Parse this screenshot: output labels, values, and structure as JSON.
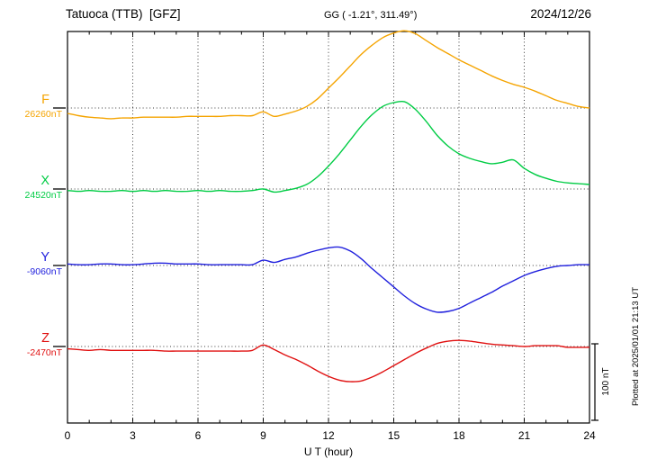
{
  "header": {
    "station": "Tatuoca (TTB)  [GFZ]",
    "coords": "GG ( -1.21°, 311.49°)",
    "date": "2024/12/26"
  },
  "axis": {
    "xlabel": "U T (hour)",
    "xticks": [
      "0",
      "3",
      "6",
      "9",
      "12",
      "15",
      "18",
      "21",
      "24"
    ]
  },
  "footer": {
    "plotted": "Plotted at 2025/01/01 21:13 UT"
  },
  "chart_data": {
    "type": "line",
    "title": "Tatuoca (TTB) [GFZ] magnetogram",
    "date": "2024/12/26",
    "xlabel": "U T (hour)",
    "xlim": [
      0,
      24
    ],
    "xticks": [
      0,
      3,
      6,
      9,
      12,
      15,
      18,
      21,
      24
    ],
    "y_unit": "nT",
    "scale_bar": {
      "label": "100 nT",
      "nT": 100
    },
    "points_format": "[hour_UT, offset_nT_from_channel_baseline]",
    "series": [
      {
        "name": "F",
        "baseline_label": "26260nT",
        "baseline_nT": 26260,
        "color": "#f5a400",
        "points": [
          [
            0,
            -7
          ],
          [
            0.5,
            -10
          ],
          [
            1,
            -12
          ],
          [
            1.5,
            -13
          ],
          [
            2,
            -14
          ],
          [
            2.5,
            -13
          ],
          [
            3,
            -13
          ],
          [
            3.5,
            -12
          ],
          [
            4,
            -12
          ],
          [
            4.5,
            -12
          ],
          [
            5,
            -12
          ],
          [
            5.5,
            -11
          ],
          [
            6,
            -11
          ],
          [
            6.5,
            -11
          ],
          [
            7,
            -11
          ],
          [
            7.5,
            -10
          ],
          [
            8,
            -10
          ],
          [
            8.5,
            -10
          ],
          [
            9,
            -5
          ],
          [
            9.5,
            -11
          ],
          [
            10,
            -8
          ],
          [
            10.5,
            -4
          ],
          [
            11,
            2
          ],
          [
            11.5,
            12
          ],
          [
            12,
            26
          ],
          [
            12.5,
            40
          ],
          [
            13,
            55
          ],
          [
            13.5,
            70
          ],
          [
            14,
            82
          ],
          [
            14.5,
            92
          ],
          [
            15,
            98
          ],
          [
            15.5,
            101
          ],
          [
            16,
            97
          ],
          [
            16.5,
            88
          ],
          [
            17,
            79
          ],
          [
            17.5,
            71
          ],
          [
            18,
            63
          ],
          [
            18.5,
            56
          ],
          [
            19,
            49
          ],
          [
            19.5,
            42
          ],
          [
            20,
            36
          ],
          [
            20.5,
            31
          ],
          [
            21,
            27
          ],
          [
            21.5,
            22
          ],
          [
            22,
            16
          ],
          [
            22.5,
            10
          ],
          [
            23,
            6
          ],
          [
            23.5,
            2
          ],
          [
            24,
            0
          ]
        ]
      },
      {
        "name": "X",
        "baseline_label": "24520nT",
        "baseline_nT": 24520,
        "color": "#00cc44",
        "points": [
          [
            0,
            -2
          ],
          [
            0.5,
            -3
          ],
          [
            1,
            -2
          ],
          [
            1.5,
            -3
          ],
          [
            2,
            -3
          ],
          [
            2.5,
            -2
          ],
          [
            3,
            -3
          ],
          [
            3.5,
            -2
          ],
          [
            4,
            -3
          ],
          [
            4.5,
            -2
          ],
          [
            5,
            -3
          ],
          [
            5.5,
            -3
          ],
          [
            6,
            -2
          ],
          [
            6.5,
            -3
          ],
          [
            7,
            -2
          ],
          [
            7.5,
            -3
          ],
          [
            8,
            -3
          ],
          [
            8.5,
            -2
          ],
          [
            9,
            0
          ],
          [
            9.5,
            -4
          ],
          [
            10,
            -2
          ],
          [
            10.5,
            1
          ],
          [
            11,
            6
          ],
          [
            11.5,
            16
          ],
          [
            12,
            30
          ],
          [
            12.5,
            46
          ],
          [
            13,
            64
          ],
          [
            13.5,
            82
          ],
          [
            14,
            97
          ],
          [
            14.5,
            108
          ],
          [
            15,
            113
          ],
          [
            15.5,
            114
          ],
          [
            16,
            104
          ],
          [
            16.5,
            88
          ],
          [
            17,
            70
          ],
          [
            17.5,
            56
          ],
          [
            18,
            46
          ],
          [
            18.5,
            40
          ],
          [
            19,
            36
          ],
          [
            19.5,
            33
          ],
          [
            20,
            35
          ],
          [
            20.5,
            38
          ],
          [
            21,
            27
          ],
          [
            21.5,
            19
          ],
          [
            22,
            14
          ],
          [
            22.5,
            10
          ],
          [
            23,
            8
          ],
          [
            23.5,
            7
          ],
          [
            24,
            6
          ]
        ]
      },
      {
        "name": "Y",
        "baseline_label": "-9060nT",
        "baseline_nT": -9060,
        "color": "#2020dd",
        "points": [
          [
            0,
            2
          ],
          [
            0.5,
            1
          ],
          [
            1,
            1
          ],
          [
            1.5,
            2
          ],
          [
            2,
            2
          ],
          [
            2.5,
            1
          ],
          [
            3,
            1
          ],
          [
            3.5,
            2
          ],
          [
            4,
            3
          ],
          [
            4.5,
            3
          ],
          [
            5,
            2
          ],
          [
            5.5,
            2
          ],
          [
            6,
            2
          ],
          [
            6.5,
            1
          ],
          [
            7,
            1
          ],
          [
            7.5,
            1
          ],
          [
            8,
            1
          ],
          [
            8.5,
            1
          ],
          [
            9,
            7
          ],
          [
            9.5,
            4
          ],
          [
            10,
            8
          ],
          [
            10.5,
            11
          ],
          [
            11,
            16
          ],
          [
            11.5,
            20
          ],
          [
            12,
            23
          ],
          [
            12.5,
            24
          ],
          [
            13,
            19
          ],
          [
            13.5,
            9
          ],
          [
            14,
            -4
          ],
          [
            14.5,
            -16
          ],
          [
            15,
            -28
          ],
          [
            15.5,
            -40
          ],
          [
            16,
            -50
          ],
          [
            16.5,
            -57
          ],
          [
            17,
            -61
          ],
          [
            17.5,
            -60
          ],
          [
            18,
            -56
          ],
          [
            18.5,
            -49
          ],
          [
            19,
            -42
          ],
          [
            19.5,
            -35
          ],
          [
            20,
            -27
          ],
          [
            20.5,
            -20
          ],
          [
            21,
            -13
          ],
          [
            21.5,
            -8
          ],
          [
            22,
            -4
          ],
          [
            22.5,
            -1
          ],
          [
            23,
            0
          ],
          [
            23.5,
            1
          ],
          [
            24,
            1
          ]
        ]
      },
      {
        "name": "Z",
        "baseline_label": "-2470nT",
        "baseline_nT": -2470,
        "color": "#e01010",
        "points": [
          [
            0,
            -3
          ],
          [
            0.5,
            -4
          ],
          [
            1,
            -5
          ],
          [
            1.5,
            -4
          ],
          [
            2,
            -5
          ],
          [
            2.5,
            -5
          ],
          [
            3,
            -5
          ],
          [
            3.5,
            -5
          ],
          [
            4,
            -5
          ],
          [
            4.5,
            -6
          ],
          [
            5,
            -6
          ],
          [
            5.5,
            -6
          ],
          [
            6,
            -6
          ],
          [
            6.5,
            -6
          ],
          [
            7,
            -6
          ],
          [
            7.5,
            -6
          ],
          [
            8,
            -6
          ],
          [
            8.5,
            -5
          ],
          [
            9,
            2
          ],
          [
            9.5,
            -4
          ],
          [
            10,
            -11
          ],
          [
            10.5,
            -17
          ],
          [
            11,
            -24
          ],
          [
            11.5,
            -32
          ],
          [
            12,
            -39
          ],
          [
            12.5,
            -44
          ],
          [
            13,
            -46
          ],
          [
            13.5,
            -45
          ],
          [
            14,
            -40
          ],
          [
            14.5,
            -33
          ],
          [
            15,
            -25
          ],
          [
            15.5,
            -17
          ],
          [
            16,
            -9
          ],
          [
            16.5,
            -2
          ],
          [
            17,
            4
          ],
          [
            17.5,
            7
          ],
          [
            18,
            8
          ],
          [
            18.5,
            7
          ],
          [
            19,
            5
          ],
          [
            19.5,
            3
          ],
          [
            20,
            2
          ],
          [
            20.5,
            1
          ],
          [
            21,
            0
          ],
          [
            21.5,
            1
          ],
          [
            22,
            1
          ],
          [
            22.5,
            1
          ],
          [
            23,
            -1
          ],
          [
            23.5,
            -1
          ],
          [
            24,
            -1
          ]
        ]
      }
    ]
  }
}
